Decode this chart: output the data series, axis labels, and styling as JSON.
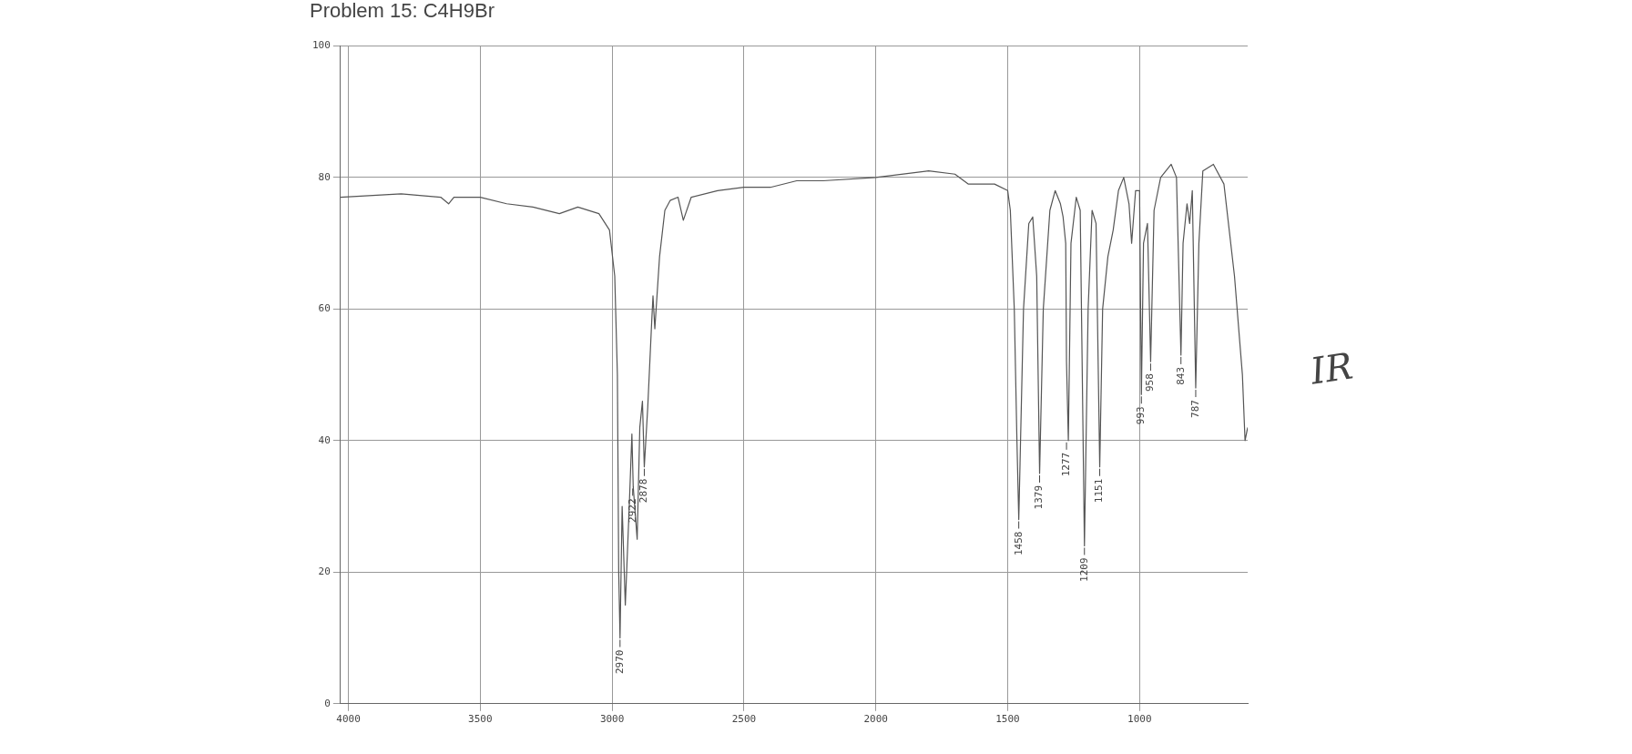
{
  "chart_data": {
    "type": "line",
    "title": "Problem 15: C4H9Br",
    "x": [
      4030,
      3800,
      3650,
      3620,
      3600,
      3500,
      3400,
      3300,
      3200,
      3130,
      3050,
      3010,
      2990,
      2980,
      2975,
      2970,
      2962,
      2950,
      2935,
      2925,
      2920,
      2905,
      2895,
      2885,
      2878,
      2865,
      2850,
      2845,
      2838,
      2820,
      2800,
      2780,
      2750,
      2730,
      2700,
      2600,
      2500,
      2400,
      2300,
      2200,
      2000,
      1800,
      1700,
      1650,
      1550,
      1500,
      1490,
      1475,
      1465,
      1458,
      1440,
      1420,
      1405,
      1390,
      1379,
      1365,
      1340,
      1320,
      1300,
      1290,
      1280,
      1277,
      1270,
      1260,
      1240,
      1225,
      1209,
      1195,
      1180,
      1165,
      1151,
      1140,
      1120,
      1100,
      1080,
      1060,
      1040,
      1030,
      1015,
      1000,
      993,
      985,
      970,
      958,
      945,
      920,
      880,
      860,
      843,
      835,
      820,
      810,
      800,
      787,
      775,
      760,
      720,
      680,
      640,
      610,
      600,
      590
    ],
    "series": [
      {
        "color": "#555555",
        "values": [
          77,
          77.5,
          77,
          76,
          77,
          77,
          76,
          75.5,
          74.5,
          75.5,
          74.5,
          72,
          65,
          50,
          20,
          10,
          30,
          15,
          30,
          41,
          33,
          25,
          42,
          46,
          36,
          45,
          58,
          62,
          57,
          68,
          75,
          76.5,
          77,
          73.5,
          77,
          78,
          78.5,
          78.5,
          79.5,
          79.5,
          80,
          81,
          80.5,
          79,
          79,
          78,
          75,
          60,
          40,
          28,
          60,
          73,
          74,
          65,
          35,
          60,
          75,
          78,
          76,
          74,
          70,
          52,
          40,
          70,
          77,
          75,
          24,
          60,
          75,
          73,
          36,
          60,
          68,
          72,
          78,
          80,
          76,
          70,
          78,
          78,
          47,
          70,
          73,
          52,
          75,
          80,
          82,
          80,
          53,
          70,
          76,
          73,
          78,
          48,
          70,
          81,
          82,
          79,
          65,
          50,
          40,
          42
        ]
      }
    ],
    "xlim": [
      4030,
      590
    ],
    "xticks": [
      4000,
      3500,
      3000,
      2500,
      2000,
      1500,
      1000
    ],
    "ylim": [
      0,
      100
    ],
    "yticks": [
      0,
      20,
      40,
      60,
      80,
      100
    ],
    "grid": true,
    "legend": false,
    "annotations": [
      {
        "text": "2970",
        "x": 2970,
        "y": 10
      },
      {
        "text": "2922",
        "x": 2922,
        "y": 33
      },
      {
        "text": "2878",
        "x": 2878,
        "y": 36
      },
      {
        "text": "1458",
        "x": 1458,
        "y": 28
      },
      {
        "text": "1379",
        "x": 1379,
        "y": 35
      },
      {
        "text": "1277",
        "x": 1277,
        "y": 40
      },
      {
        "text": "1209",
        "x": 1209,
        "y": 24
      },
      {
        "text": "1151",
        "x": 1151,
        "y": 36
      },
      {
        "text": "993",
        "x": 993,
        "y": 47
      },
      {
        "text": "958",
        "x": 958,
        "y": 52
      },
      {
        "text": "843",
        "x": 843,
        "y": 53
      },
      {
        "text": "787",
        "x": 787,
        "y": 48
      },
      "IR"
    ]
  }
}
